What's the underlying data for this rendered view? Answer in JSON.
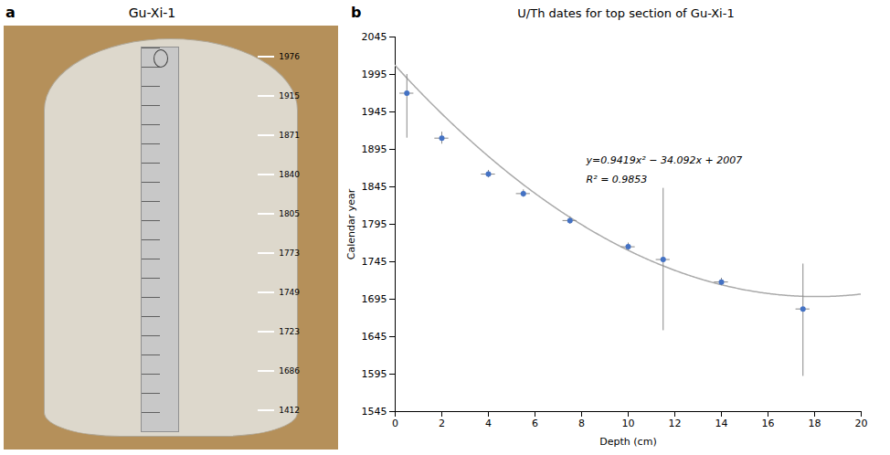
{
  "chart_data": [
    {
      "type": "illustration",
      "title": "Gu-Xi-1",
      "panel_label": "a",
      "labels": [
        "1976",
        "1915",
        "1871",
        "1840",
        "1805",
        "1773",
        "1749",
        "1723",
        "1686",
        "1412"
      ],
      "colors": [
        "#b5905a",
        "#ddd8cc",
        "#c8c8c8"
      ]
    },
    {
      "type": "scatter",
      "title": "U/Th dates for top section of Gu-Xi-1",
      "panel_label": "b",
      "xlabel": "Depth (cm)",
      "ylabel": "Calendar year",
      "x": [
        0.5,
        2.0,
        4.0,
        5.5,
        7.5,
        10.0,
        11.5,
        14.0,
        17.5
      ],
      "values": [
        1970,
        1910,
        1862,
        1836,
        1800,
        1765,
        1748,
        1718,
        1682
      ],
      "yerr_lo": [
        60,
        8,
        5,
        5,
        5,
        5,
        95,
        5,
        90
      ],
      "yerr_hi": [
        25,
        8,
        5,
        5,
        5,
        5,
        95,
        5,
        60
      ],
      "xerr_lo": [
        0.3,
        0.3,
        0.3,
        0.3,
        0.3,
        0.3,
        0.3,
        0.3,
        0.3
      ],
      "xerr_hi": [
        0.3,
        0.3,
        0.3,
        0.3,
        0.3,
        0.3,
        0.3,
        0.3,
        0.3
      ],
      "color": "#4472C4",
      "error_color": "#888888",
      "fit": {
        "a": 0.9419,
        "b": -34.092,
        "c": 2007,
        "color": "#aaaaaa"
      },
      "annotations": [
        {
          "text": "y=0.9419x² − 34.092x + 2007",
          "x": 8.2,
          "y": 1880
        },
        {
          "text": "R² = 0.9853",
          "x": 8.2,
          "y": 1855
        }
      ],
      "xlim": [
        0,
        20
      ],
      "ylim": [
        1545,
        2045
      ],
      "xticks": [
        0,
        2,
        4,
        6,
        8,
        10,
        12,
        14,
        16,
        18,
        20
      ],
      "yticks": [
        1545,
        1595,
        1645,
        1695,
        1745,
        1795,
        1845,
        1895,
        1945,
        1995,
        2045
      ],
      "grid": false
    }
  ]
}
